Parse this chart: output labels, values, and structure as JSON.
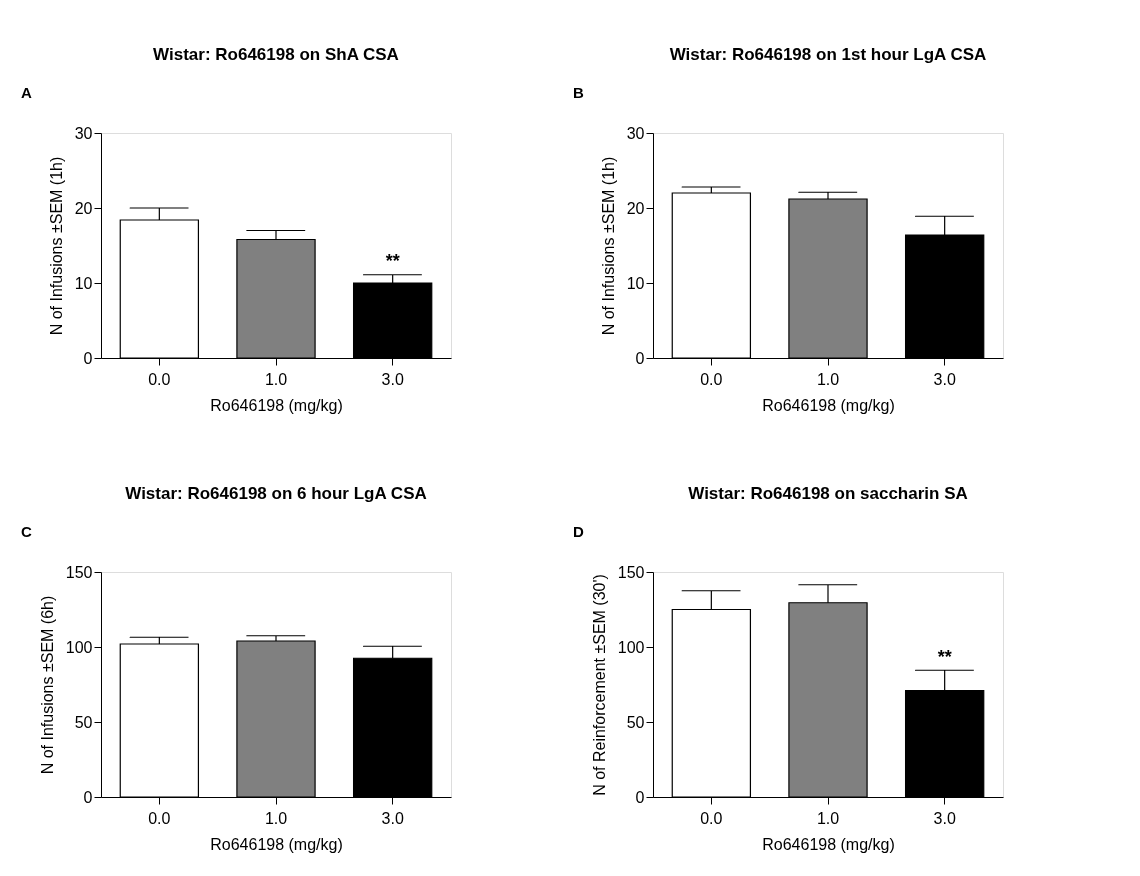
{
  "chart_data": [
    {
      "type": "bar",
      "title": "Wistar: Ro646198 on ShA CSA",
      "xlabel": "Ro646198 (mg/kg)",
      "ylabel": "N of Infusions ±SEM (1h)",
      "categories": [
        "0.0",
        "1.0",
        "3.0"
      ],
      "values": [
        18.4,
        15.8,
        10.0
      ],
      "errors": [
        [
          18.4,
          20.0
        ],
        [
          15.8,
          17.0
        ],
        [
          10.0,
          11.1
        ]
      ],
      "colors": [
        "#ffffff",
        "#808080",
        "#000000"
      ],
      "ylim": [
        0,
        30
      ],
      "yticks": [
        0,
        10,
        20,
        30
      ],
      "grid": false,
      "legend": false,
      "annotations": [
        "A",
        {
          "text": "**",
          "x": "3.0",
          "y": 11.6
        }
      ]
    },
    {
      "type": "bar",
      "title": "Wistar: Ro646198 on 1st hour LgA CSA",
      "xlabel": "Ro646198 (mg/kg)",
      "ylabel": "N of Infusions ±SEM (1h)",
      "categories": [
        "0.0",
        "1.0",
        "3.0"
      ],
      "values": [
        22.0,
        21.2,
        16.4
      ],
      "errors": [
        [
          22.0,
          22.8
        ],
        [
          21.2,
          22.1
        ],
        [
          16.4,
          18.9
        ]
      ],
      "colors": [
        "#ffffff",
        "#808080",
        "#000000"
      ],
      "ylim": [
        0,
        30
      ],
      "yticks": [
        0,
        10,
        20,
        30
      ],
      "grid": false,
      "legend": false,
      "annotations": [
        "B"
      ]
    },
    {
      "type": "bar",
      "title": "Wistar: Ro646198 on 6 hour LgA CSA",
      "xlabel": "Ro646198 (mg/kg)",
      "ylabel": "N of Infusions ±SEM (6h)",
      "categories": [
        "0.0",
        "1.0",
        "3.0"
      ],
      "values": [
        102,
        104,
        92.5
      ],
      "errors": [
        [
          102,
          106.5
        ],
        [
          104,
          107.5
        ],
        [
          92.5,
          100.5
        ]
      ],
      "colors": [
        "#ffffff",
        "#808080",
        "#000000"
      ],
      "ylim": [
        0,
        150
      ],
      "yticks": [
        0,
        50,
        100,
        150
      ],
      "grid": false,
      "legend": false,
      "annotations": [
        "C"
      ]
    },
    {
      "type": "bar",
      "title": "Wistar: Ro646198 on saccharin SA",
      "xlabel": "Ro646198 (mg/kg)",
      "ylabel": "N of Reinforcement ±SEM (30')",
      "categories": [
        "0.0",
        "1.0",
        "3.0"
      ],
      "values": [
        125,
        129.5,
        71
      ],
      "errors": [
        [
          125,
          137.5
        ],
        [
          129.5,
          141.5
        ],
        [
          71,
          84.5
        ]
      ],
      "colors": [
        "#ffffff",
        "#808080",
        "#000000"
      ],
      "ylim": [
        0,
        150
      ],
      "yticks": [
        0,
        50,
        100,
        150
      ],
      "grid": false,
      "legend": false,
      "annotations": [
        "D",
        {
          "text": "**",
          "x": "3.0",
          "y": 86.5
        }
      ]
    }
  ]
}
